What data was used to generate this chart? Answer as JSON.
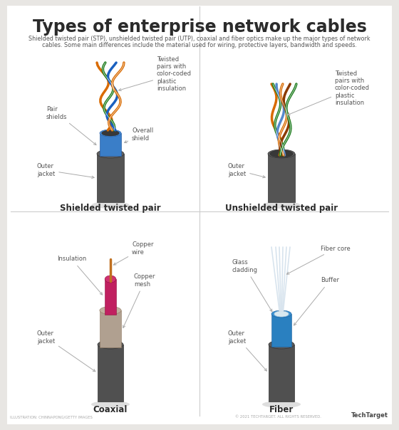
{
  "title": "Types of enterprise network cables",
  "subtitle_line1": "Shielded twisted pair (STP), unshielded twisted pair (UTP), coaxial and fiber optics make up the major types of network",
  "subtitle_line2": "cables. Some main differences include the material used for wiring, protective layers, bandwidth and speeds.",
  "bg_color": "#e8e6e3",
  "white_bg": "#ffffff",
  "title_color": "#2b2b2b",
  "subtitle_color": "#555555",
  "label_color": "#555555",
  "arrow_color": "#aaaaaa",
  "divider_color": "#cccccc",
  "cable_names": [
    "Shielded twisted pair",
    "Unshielded twisted pair",
    "Coaxial",
    "Fiber"
  ],
  "footer_left": "ILLUSTRATION: CHINNAPONG/GETTY IMAGES",
  "footer_right": "© 2021 TECHTARGET. ALL RIGHTS RESERVED.",
  "techtarget_logo": "TechTarget"
}
